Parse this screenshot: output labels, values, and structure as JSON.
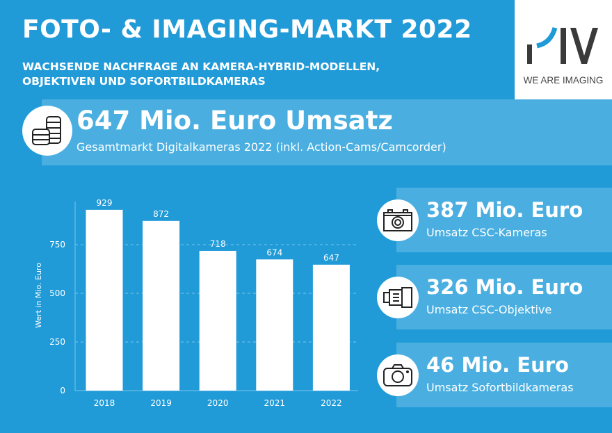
{
  "header": {
    "title": "FOTO- & IMAGING-MARKT 2022",
    "subtitle_line1": "WACHSENDE NACHFRAGE AN KAMERA-HYBRID-MODELLEN,",
    "subtitle_line2": "OBJEKTIVEN UND SOFORTBILDKAMERAS"
  },
  "logo": {
    "text": "PIV",
    "tagline": "WE ARE IMAGING",
    "accent": "#1e9ad6"
  },
  "total": {
    "value": "647 Mio. Euro Umsatz",
    "label": "Gesamtmarkt Digitalkameras 2022 (inkl. Action-Cams/Camcorder)",
    "icon": "coins-icon"
  },
  "stats": [
    {
      "value": "387 Mio. Euro",
      "label": "Umsatz CSC-Kameras",
      "icon": "camera-icon"
    },
    {
      "value": "326 Mio. Euro",
      "label": "Umsatz CSC-Objektive",
      "icon": "lens-icon"
    },
    {
      "value": "46 Mio. Euro",
      "label": "Umsatz Sofortbildkameras",
      "icon": "instant-camera-icon"
    }
  ],
  "chart_data": {
    "type": "bar",
    "categories": [
      "2018",
      "2019",
      "2020",
      "2021",
      "2022"
    ],
    "values": [
      929,
      872,
      718,
      674,
      647
    ],
    "ylabel": "Wert in Mio. Euro",
    "xlabel": "",
    "ylim": [
      0,
      1000
    ],
    "yticks": [
      0,
      250,
      500,
      750
    ],
    "grid": "dashed horizontal",
    "bar_color": "#ffffff"
  }
}
